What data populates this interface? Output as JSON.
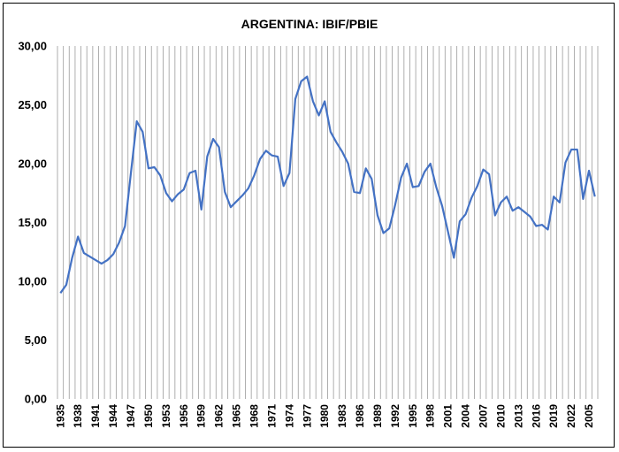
{
  "chart_data": {
    "type": "line",
    "title": "ARGENTINA:  IBIF/PBIE",
    "xlabel": "",
    "ylabel": "",
    "ylim": [
      0,
      30
    ],
    "yticks": [
      "0,00",
      "5,00",
      "10,00",
      "15,00",
      "20,00",
      "25,00",
      "30,00"
    ],
    "ytick_values": [
      0,
      5,
      10,
      15,
      20,
      25,
      30
    ],
    "xtick_labels": [
      "1935",
      "1938",
      "1941",
      "1944",
      "1947",
      "1950",
      "1953",
      "1956",
      "1959",
      "1962",
      "1965",
      "1968",
      "1971",
      "1974",
      "1977",
      "1980",
      "1983",
      "1986",
      "1989",
      "1992",
      "1995",
      "1998",
      "2001",
      "2004",
      "2007",
      "2010",
      "2013",
      "2016",
      "2019",
      "2022",
      "2005"
    ],
    "gridlines": "vertical",
    "legend": "none",
    "line_color": "#4472C4",
    "categories": [
      "1935",
      "1936",
      "1937",
      "1938",
      "1939",
      "1940",
      "1941",
      "1942",
      "1943",
      "1944",
      "1945",
      "1946",
      "1947",
      "1948",
      "1949",
      "1950",
      "1951",
      "1952",
      "1953",
      "1954",
      "1955",
      "1956",
      "1957",
      "1958",
      "1959",
      "1960",
      "1961",
      "1962",
      "1963",
      "1964",
      "1965",
      "1966",
      "1967",
      "1968",
      "1969",
      "1970",
      "1971",
      "1972",
      "1973",
      "1974",
      "1975",
      "1976",
      "1977",
      "1978",
      "1979",
      "1980",
      "1981",
      "1982",
      "1983",
      "1984",
      "1985",
      "1986",
      "1987",
      "1988",
      "1989",
      "1990",
      "1991",
      "1992",
      "1993",
      "1994",
      "1995",
      "1996",
      "1997",
      "1998",
      "1999",
      "2000",
      "2001",
      "2002",
      "2003",
      "2004",
      "2005",
      "2006",
      "2007",
      "2008",
      "2009",
      "2010",
      "2011",
      "2012",
      "2013",
      "2014",
      "2015",
      "2016",
      "2017",
      "2018",
      "2019",
      "2020",
      "2021",
      "2022",
      "2023",
      "2024",
      "2005",
      "2006"
    ],
    "values": [
      9.0,
      9.7,
      12.0,
      13.8,
      12.4,
      12.1,
      11.8,
      11.5,
      11.8,
      12.3,
      13.3,
      14.7,
      19.2,
      23.6,
      22.7,
      19.6,
      19.7,
      19.0,
      17.5,
      16.8,
      17.4,
      17.8,
      19.2,
      19.4,
      16.1,
      20.6,
      22.1,
      21.4,
      17.6,
      16.3,
      16.8,
      17.3,
      17.9,
      19.0,
      20.4,
      21.1,
      20.7,
      20.6,
      18.1,
      19.2,
      25.5,
      27.0,
      27.4,
      25.3,
      24.1,
      25.3,
      22.7,
      21.8,
      21.0,
      20.0,
      17.6,
      17.5,
      19.6,
      18.7,
      15.6,
      14.1,
      14.5,
      16.5,
      18.8,
      20.0,
      18.0,
      18.1,
      19.3,
      20.0,
      18.0,
      16.4,
      14.2,
      12.0,
      15.1,
      15.7,
      17.1,
      18.1,
      19.5,
      19.1,
      15.6,
      16.7,
      17.2,
      16.0,
      16.3,
      15.9,
      15.5,
      14.7,
      14.8,
      14.4,
      17.2,
      16.7,
      20.1,
      21.2,
      21.2,
      17.0,
      19.4,
      17.2
    ]
  }
}
